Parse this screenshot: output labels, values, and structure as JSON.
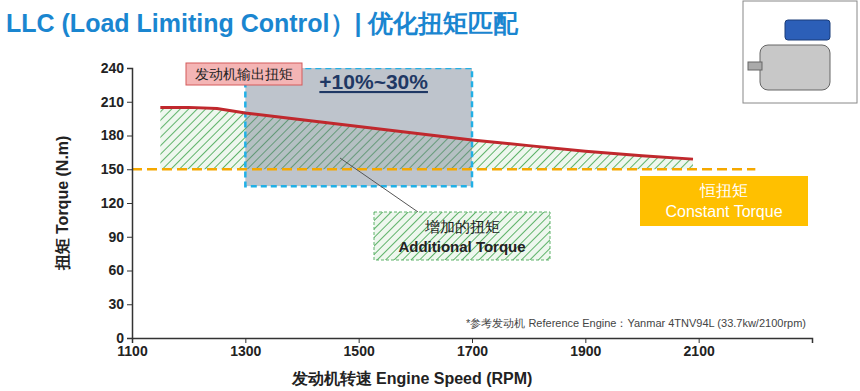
{
  "chart_data": {
    "type": "line",
    "title": "LLC (Load Limiting Control）| 优化扭矩匹配",
    "x_label": "发动机转速 Engine Speed (RPM)",
    "y_label": "扭矩 Torque (N.m)",
    "xlim": [
      1100,
      2300
    ],
    "xticks": [
      1100,
      1300,
      1500,
      1700,
      1900,
      2100
    ],
    "ylim": [
      0,
      240
    ],
    "yticks": [
      0,
      30,
      60,
      90,
      120,
      150,
      180,
      210,
      240
    ],
    "grid": false,
    "series": [
      {
        "name": "发动机输出扭矩",
        "type": "line",
        "color": "#c0282d",
        "line_style": "solid",
        "x": [
          1150,
          1200,
          1250,
          1300,
          1400,
          1500,
          1600,
          1700,
          1800,
          1900,
          2000,
          2090
        ],
        "values": [
          205,
          205,
          204,
          200,
          194,
          188,
          182,
          176,
          171,
          166,
          162,
          159
        ]
      },
      {
        "name": [
          "恒扭矩",
          "Constant Torque"
        ],
        "type": "line",
        "color": "#f5a800",
        "line_style": "dashed",
        "x": [
          1100,
          2200
        ],
        "values": [
          150,
          150
        ]
      }
    ],
    "area": {
      "name": [
        "增加的扭矩",
        "Additional Torque"
      ],
      "color": "#5fb36a"
    },
    "highlight": {
      "label": "+10%~30%",
      "x": [
        1300,
        1700
      ],
      "y": [
        135,
        240
      ],
      "color": "#22b0e6"
    },
    "note": "*参考发动机 Reference Engine：Yanmar 4TNV94L (33.7kw/2100rpm)"
  }
}
